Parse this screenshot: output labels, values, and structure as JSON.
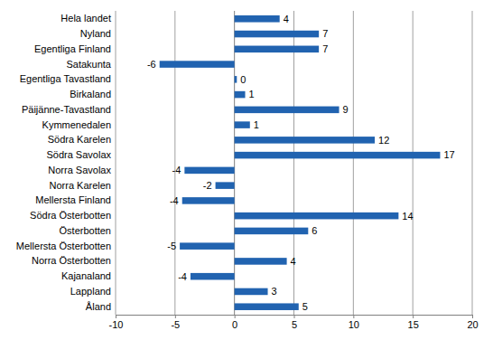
{
  "chart_data": {
    "type": "bar",
    "orientation": "horizontal",
    "categories": [
      "Hela landet",
      "Nyland",
      "Egentliga Finland",
      "Satakunta",
      "Egentliga Tavastland",
      "Birkaland",
      "Päijänne-Tavastland",
      "Kymmenedalen",
      "Södra Karelen",
      "Södra Savolax",
      "Norra Savolax",
      "Norra Karelen",
      "Mellersta Finland",
      "Södra Österbotten",
      "Österbotten",
      "Mellersta Österbotten",
      "Norra Österbotten",
      "Kajanaland",
      "Lappland",
      "Åland"
    ],
    "values": [
      3.8,
      7.1,
      7.1,
      -6.3,
      0.2,
      0.9,
      8.8,
      1.3,
      11.8,
      17.3,
      -4.2,
      -1.6,
      -4.4,
      13.8,
      6.2,
      -4.6,
      4.4,
      -3.7,
      2.8,
      5.4
    ],
    "value_labels": [
      "4",
      "7",
      "7",
      "-6",
      "0",
      "1",
      "9",
      "1",
      "12",
      "17",
      "-4",
      "-2",
      "-4",
      "14",
      "6",
      "-5",
      "4",
      "-4",
      "3",
      "5"
    ],
    "data_labels": true,
    "color": "#2163b0",
    "xlim": [
      -10,
      20
    ],
    "xticks": [
      -10,
      -5,
      0,
      5,
      10,
      15,
      20
    ],
    "grid": true
  }
}
